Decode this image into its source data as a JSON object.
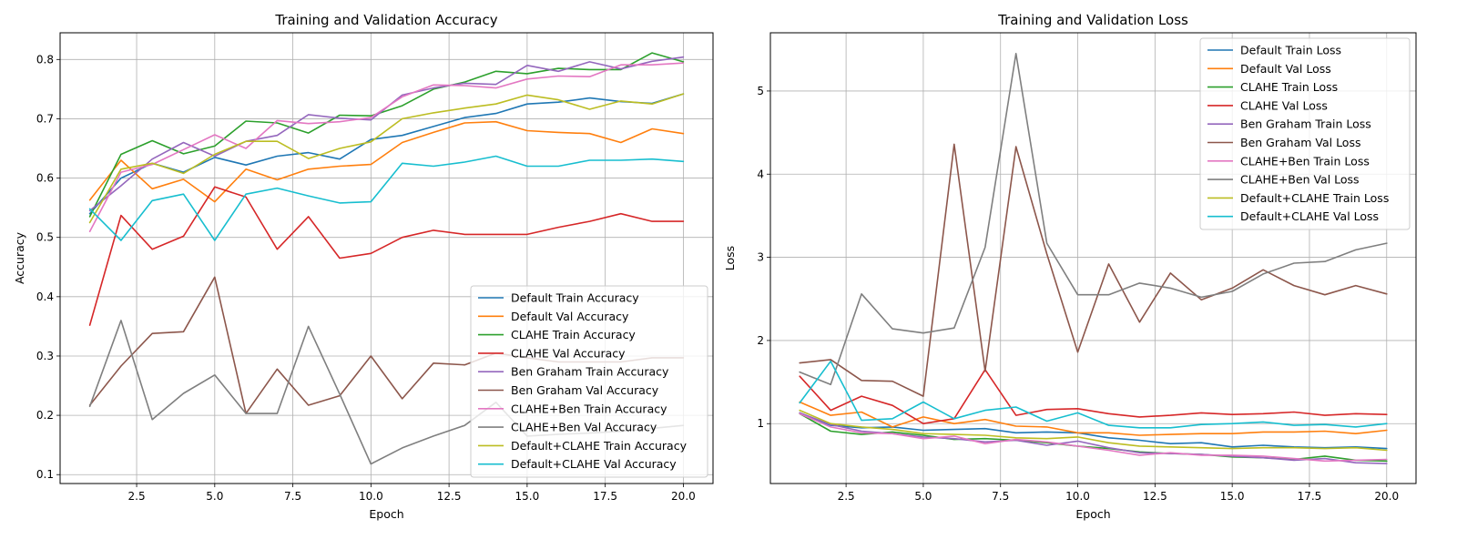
{
  "chart_data": [
    {
      "type": "line",
      "title": "Training and Validation Accuracy",
      "xlabel": "Epoch",
      "ylabel": "Accuracy",
      "xlim": [
        0.05,
        20.95
      ],
      "ylim": [
        0.085,
        0.845
      ],
      "xticks": [
        2.5,
        5.0,
        7.5,
        10.0,
        12.5,
        15.0,
        17.5,
        20.0
      ],
      "xtick_labels": [
        "2.5",
        "5.0",
        "7.5",
        "10.0",
        "12.5",
        "15.0",
        "17.5",
        "20.0"
      ],
      "yticks": [
        0.1,
        0.2,
        0.3,
        0.4,
        0.5,
        0.6,
        0.7,
        0.8
      ],
      "ytick_labels": [
        "0.1",
        "0.2",
        "0.3",
        "0.4",
        "0.5",
        "0.6",
        "0.7",
        "0.8"
      ],
      "grid": true,
      "legend_position": "lower-right",
      "x": [
        1,
        2,
        3,
        4,
        5,
        6,
        7,
        8,
        9,
        10,
        11,
        12,
        13,
        14,
        15,
        16,
        17,
        18,
        19,
        20
      ],
      "series": [
        {
          "name": "Default Train Accuracy",
          "color": "#1f77b4",
          "values": [
            0.54,
            0.6,
            0.625,
            0.61,
            0.635,
            0.622,
            0.637,
            0.643,
            0.632,
            0.665,
            0.672,
            0.687,
            0.702,
            0.709,
            0.725,
            0.728,
            0.735,
            0.729,
            0.726,
            0.742
          ]
        },
        {
          "name": "Default Val Accuracy",
          "color": "#ff7f0e",
          "values": [
            0.563,
            0.63,
            0.582,
            0.598,
            0.56,
            0.615,
            0.597,
            0.615,
            0.62,
            0.623,
            0.66,
            0.677,
            0.693,
            0.695,
            0.68,
            0.677,
            0.675,
            0.66,
            0.683,
            0.675
          ]
        },
        {
          "name": "CLAHE Train Accuracy",
          "color": "#2ca02c",
          "values": [
            0.535,
            0.64,
            0.663,
            0.641,
            0.654,
            0.696,
            0.693,
            0.676,
            0.706,
            0.705,
            0.722,
            0.75,
            0.762,
            0.78,
            0.776,
            0.785,
            0.783,
            0.783,
            0.811,
            0.796
          ]
        },
        {
          "name": "CLAHE Val Accuracy",
          "color": "#d62728",
          "values": [
            0.352,
            0.537,
            0.48,
            0.502,
            0.585,
            0.568,
            0.48,
            0.535,
            0.465,
            0.473,
            0.5,
            0.512,
            0.505,
            0.505,
            0.505,
            0.517,
            0.527,
            0.54,
            0.527,
            0.527
          ]
        },
        {
          "name": "Ben Graham Train Accuracy",
          "color": "#9467bd",
          "values": [
            0.545,
            0.587,
            0.632,
            0.66,
            0.637,
            0.662,
            0.672,
            0.707,
            0.701,
            0.698,
            0.74,
            0.752,
            0.76,
            0.758,
            0.79,
            0.78,
            0.796,
            0.784,
            0.797,
            0.804
          ]
        },
        {
          "name": "Ben Graham Val Accuracy",
          "color": "#8c564b",
          "values": [
            0.217,
            0.283,
            0.338,
            0.341,
            0.433,
            0.203,
            0.278,
            0.217,
            0.233,
            0.3,
            0.228,
            0.288,
            0.285,
            0.305,
            0.297,
            0.29,
            0.29,
            0.29,
            0.297,
            0.297
          ]
        },
        {
          "name": "CLAHE+Ben Train Accuracy",
          "color": "#e377c2",
          "values": [
            0.51,
            0.61,
            0.623,
            0.648,
            0.673,
            0.65,
            0.697,
            0.692,
            0.695,
            0.702,
            0.737,
            0.757,
            0.756,
            0.752,
            0.767,
            0.772,
            0.771,
            0.791,
            0.791,
            0.794
          ]
        },
        {
          "name": "CLAHE+Ben Val Accuracy",
          "color": "#7f7f7f",
          "values": [
            0.215,
            0.36,
            0.193,
            0.237,
            0.268,
            0.203,
            0.203,
            0.35,
            0.236,
            0.118,
            0.145,
            0.165,
            0.183,
            0.222,
            0.165,
            0.168,
            0.17,
            0.173,
            0.178,
            0.183
          ]
        },
        {
          "name": "Default+CLAHE Train Accuracy",
          "color": "#bcbd22",
          "values": [
            0.525,
            0.615,
            0.625,
            0.608,
            0.64,
            0.662,
            0.662,
            0.633,
            0.65,
            0.661,
            0.7,
            0.71,
            0.718,
            0.725,
            0.74,
            0.732,
            0.716,
            0.73,
            0.725,
            0.742
          ]
        },
        {
          "name": "Default+CLAHE Val Accuracy",
          "color": "#17becf",
          "values": [
            0.548,
            0.495,
            0.562,
            0.573,
            0.495,
            0.573,
            0.583,
            0.57,
            0.558,
            0.56,
            0.625,
            0.62,
            0.627,
            0.637,
            0.62,
            0.62,
            0.63,
            0.63,
            0.632,
            0.628
          ]
        }
      ]
    },
    {
      "type": "line",
      "title": "Training and Validation Loss",
      "xlabel": "Epoch",
      "ylabel": "Loss",
      "xlim": [
        0.05,
        20.95
      ],
      "ylim": [
        0.28,
        5.7
      ],
      "xticks": [
        2.5,
        5.0,
        7.5,
        10.0,
        12.5,
        15.0,
        17.5,
        20.0
      ],
      "xtick_labels": [
        "2.5",
        "5.0",
        "7.5",
        "10.0",
        "12.5",
        "15.0",
        "17.5",
        "20.0"
      ],
      "yticks": [
        1,
        2,
        3,
        4,
        5
      ],
      "ytick_labels": [
        "1",
        "2",
        "3",
        "4",
        "5"
      ],
      "grid": true,
      "legend_position": "upper-right",
      "x": [
        1,
        2,
        3,
        4,
        5,
        6,
        7,
        8,
        9,
        10,
        11,
        12,
        13,
        14,
        15,
        16,
        17,
        18,
        19,
        20
      ],
      "series": [
        {
          "name": "Default Train Loss",
          "color": "#1f77b4",
          "values": [
            1.13,
            0.98,
            0.95,
            0.96,
            0.92,
            0.93,
            0.94,
            0.89,
            0.9,
            0.89,
            0.83,
            0.8,
            0.76,
            0.77,
            0.72,
            0.74,
            0.72,
            0.71,
            0.72,
            0.7
          ]
        },
        {
          "name": "Default Val Loss",
          "color": "#ff7f0e",
          "values": [
            1.26,
            1.1,
            1.14,
            0.96,
            1.08,
            1.0,
            1.05,
            0.97,
            0.96,
            0.89,
            0.89,
            0.86,
            0.87,
            0.88,
            0.88,
            0.9,
            0.9,
            0.91,
            0.88,
            0.92
          ]
        },
        {
          "name": "CLAHE Train Loss",
          "color": "#2ca02c",
          "values": [
            1.12,
            0.91,
            0.87,
            0.9,
            0.86,
            0.81,
            0.82,
            0.8,
            0.77,
            0.73,
            0.7,
            0.66,
            0.64,
            0.63,
            0.6,
            0.59,
            0.57,
            0.61,
            0.56,
            0.55
          ]
        },
        {
          "name": "CLAHE Val Loss",
          "color": "#d62728",
          "values": [
            1.57,
            1.16,
            1.33,
            1.22,
            1.0,
            1.06,
            1.65,
            1.1,
            1.17,
            1.18,
            1.12,
            1.08,
            1.1,
            1.13,
            1.11,
            1.12,
            1.14,
            1.1,
            1.12,
            1.11
          ]
        },
        {
          "name": "Ben Graham Train Loss",
          "color": "#9467bd",
          "values": [
            1.13,
            0.99,
            0.91,
            0.88,
            0.84,
            0.82,
            0.78,
            0.8,
            0.74,
            0.79,
            0.71,
            0.65,
            0.64,
            0.63,
            0.61,
            0.59,
            0.56,
            0.58,
            0.53,
            0.52
          ]
        },
        {
          "name": "Ben Graham Val Loss",
          "color": "#8c564b",
          "values": [
            1.73,
            1.77,
            1.52,
            1.51,
            1.33,
            4.36,
            1.63,
            4.33,
            3.04,
            1.86,
            2.92,
            2.22,
            2.81,
            2.49,
            2.63,
            2.85,
            2.66,
            2.55,
            2.66,
            2.56
          ]
        },
        {
          "name": "CLAHE+Ben Train Loss",
          "color": "#e377c2",
          "values": [
            1.12,
            0.96,
            0.89,
            0.88,
            0.82,
            0.85,
            0.76,
            0.81,
            0.78,
            0.73,
            0.68,
            0.62,
            0.65,
            0.62,
            0.62,
            0.61,
            0.58,
            0.55,
            0.56,
            0.57
          ]
        },
        {
          "name": "CLAHE+Ben Val Loss",
          "color": "#7f7f7f",
          "values": [
            1.62,
            1.47,
            2.56,
            2.14,
            2.09,
            2.15,
            3.12,
            5.45,
            3.17,
            2.55,
            2.55,
            2.69,
            2.63,
            2.52,
            2.59,
            2.8,
            2.93,
            2.95,
            3.09,
            3.17
          ]
        },
        {
          "name": "Default+CLAHE Train Loss",
          "color": "#bcbd22",
          "values": [
            1.16,
            1.0,
            0.96,
            0.93,
            0.88,
            0.87,
            0.86,
            0.83,
            0.82,
            0.84,
            0.77,
            0.73,
            0.72,
            0.71,
            0.7,
            0.71,
            0.71,
            0.7,
            0.71,
            0.68
          ]
        },
        {
          "name": "Default+CLAHE Val Loss",
          "color": "#17becf",
          "values": [
            1.25,
            1.75,
            1.04,
            1.06,
            1.26,
            1.06,
            1.16,
            1.2,
            1.03,
            1.13,
            0.98,
            0.95,
            0.95,
            0.99,
            1.0,
            1.02,
            0.98,
            0.99,
            0.96,
            1.0
          ]
        }
      ]
    }
  ]
}
